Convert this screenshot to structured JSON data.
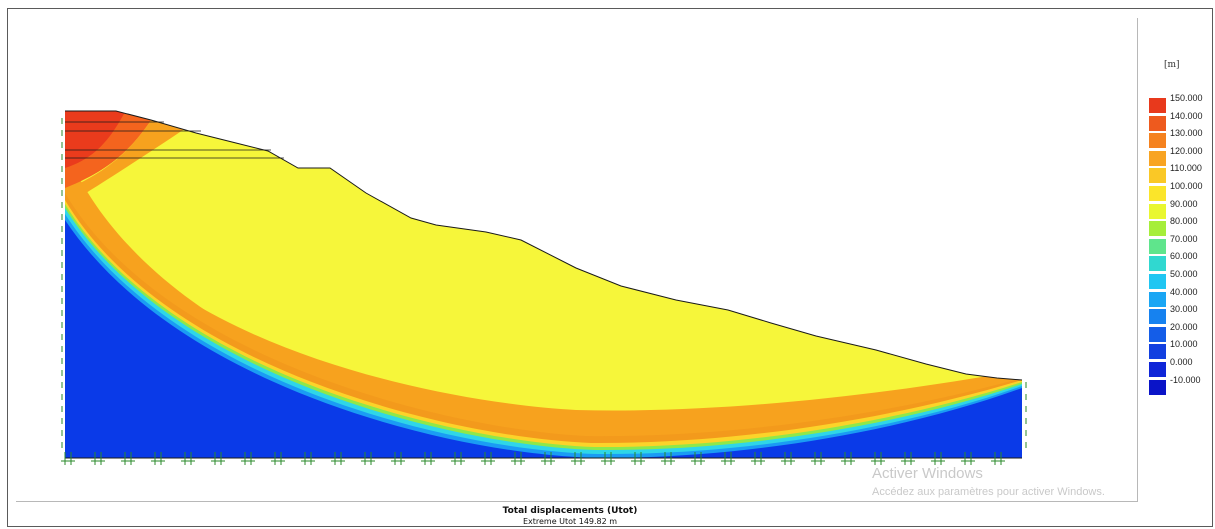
{
  "legend": {
    "unit": "[m]",
    "entries": [
      {
        "label": "150.000",
        "color": "#e8391c"
      },
      {
        "label": "140.000",
        "color": "#ee5a1e"
      },
      {
        "label": "130.000",
        "color": "#f5821f"
      },
      {
        "label": "120.000",
        "color": "#f8a422"
      },
      {
        "label": "110.000",
        "color": "#fac826"
      },
      {
        "label": "100.000",
        "color": "#fbe52a"
      },
      {
        "label": "90.000",
        "color": "#e9f730"
      },
      {
        "label": "80.000",
        "color": "#a6ee3a"
      },
      {
        "label": "70.000",
        "color": "#5fe58c"
      },
      {
        "label": "60.000",
        "color": "#30d8d0"
      },
      {
        "label": "50.000",
        "color": "#20c6f2"
      },
      {
        "label": "40.000",
        "color": "#1aa6f4"
      },
      {
        "label": "30.000",
        "color": "#1682f0"
      },
      {
        "label": "20.000",
        "color": "#145de8"
      },
      {
        "label": "10.000",
        "color": "#1240e0"
      },
      {
        "label": "0.000",
        "color": "#0f26d8"
      },
      {
        "label": "-10.000",
        "color": "#0a14c8"
      }
    ]
  },
  "result": {
    "title": "Total displacements (Utot)",
    "subtitle": "Extreme Utot 149.82 m"
  },
  "watermark": {
    "title": "Activer Windows",
    "subtitle": "Accédez aux paramètres pour activer Windows."
  },
  "colors": {
    "red": "#ea3b1c",
    "orange_red": "#f4641e",
    "orange": "#f7a21e",
    "yellow_orange": "#fcd329",
    "yellow": "#f6f63a",
    "green": "#8fe84a",
    "cyan": "#2fd6e8",
    "light_blue": "#1a9cf4",
    "blue": "#0a3ae8",
    "boundary": "#2a8a2a"
  }
}
